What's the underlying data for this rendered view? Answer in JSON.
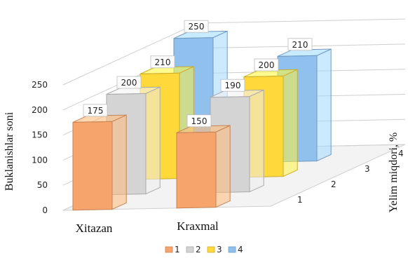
{
  "chart_data": {
    "type": "bar",
    "title": "",
    "categories": [
      "Xitazan",
      "Kraxmal"
    ],
    "depth_categories": [
      "1",
      "2",
      "3",
      "4"
    ],
    "series": [
      {
        "name": "1",
        "values": [
          175,
          150
        ],
        "color": "#F7A46C"
      },
      {
        "name": "2",
        "values": [
          200,
          190
        ],
        "color": "#D4D4D4"
      },
      {
        "name": "3",
        "values": [
          210,
          200
        ],
        "color": "#FFD83A"
      },
      {
        "name": "4",
        "values": [
          250,
          210
        ],
        "color": "#8FC0EE"
      }
    ],
    "ylabel": "Buklanishlar soni",
    "zlabel": "Yelim miqdori, %",
    "ylim": [
      0,
      250
    ],
    "yticks": [
      0,
      50,
      100,
      150,
      200,
      250
    ],
    "grid": true,
    "legend": "bottom"
  }
}
